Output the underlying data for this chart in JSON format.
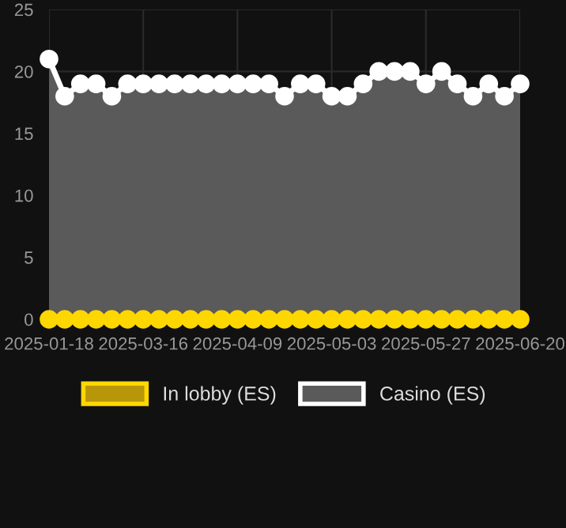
{
  "chart_data": {
    "type": "area",
    "categories": [
      "2025-01-18",
      null,
      null,
      null,
      null,
      null,
      "2025-03-16",
      null,
      null,
      null,
      null,
      null,
      "2025-04-09",
      null,
      null,
      null,
      null,
      null,
      "2025-05-03",
      null,
      null,
      null,
      null,
      null,
      "2025-05-27",
      null,
      null,
      null,
      null,
      null,
      "2025-06-20"
    ],
    "series": [
      {
        "name": "In lobby (ES)",
        "type": "line",
        "color": "#ffd700",
        "values": [
          0,
          0,
          0,
          0,
          0,
          0,
          0,
          0,
          0,
          0,
          0,
          0,
          0,
          0,
          0,
          0,
          0,
          0,
          0,
          0,
          0,
          0,
          0,
          0,
          0,
          0,
          0,
          0,
          0,
          0,
          0
        ]
      },
      {
        "name": "Casino (ES)",
        "color": "#ffffff",
        "values": [
          21,
          18,
          19,
          19,
          18,
          19,
          19,
          19,
          19,
          19,
          19,
          19,
          19,
          19,
          19,
          18,
          19,
          19,
          18,
          18,
          19,
          20,
          20,
          20,
          19,
          20,
          19,
          18,
          19,
          18,
          19
        ]
      }
    ],
    "ylim": [
      0,
      25
    ],
    "yticks": [
      0,
      5,
      10,
      15,
      20,
      25
    ],
    "grid": true,
    "legend": "bottom",
    "marker": "circle",
    "line_style": "solid"
  }
}
